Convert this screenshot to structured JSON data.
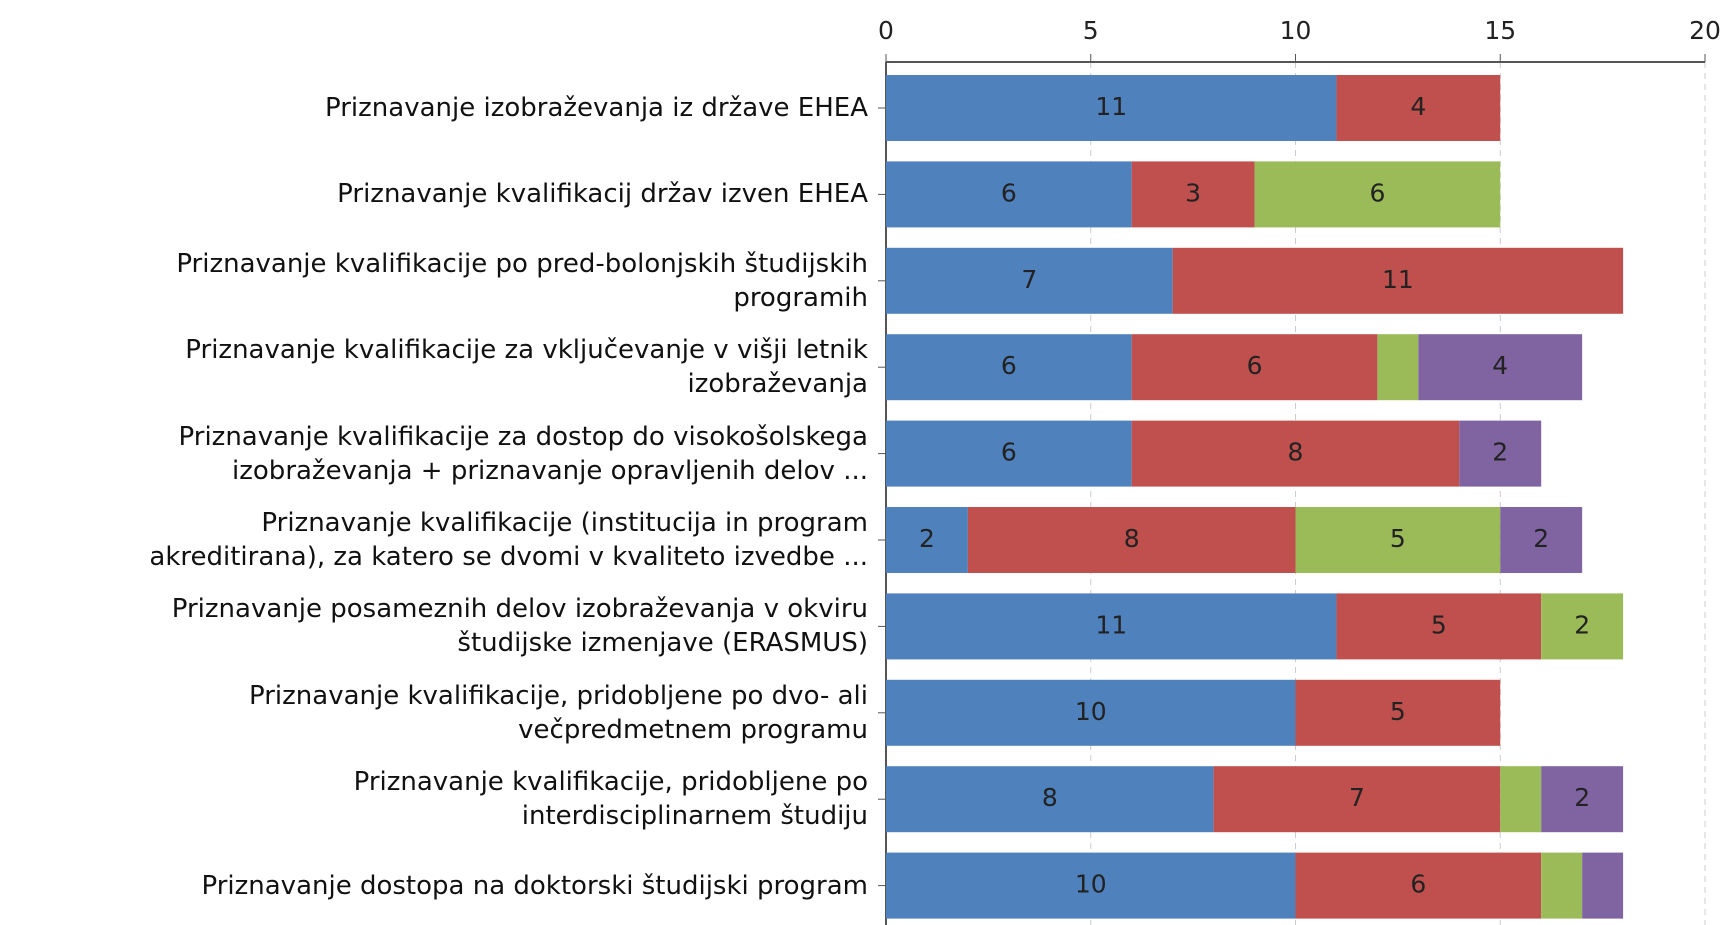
{
  "chart_data": {
    "type": "stacked-bar-horizontal",
    "categories": [
      "Priznavanje izobraževanja iz države EHEA",
      "Priznavanje kvalifikacij držav izven EHEA",
      "Priznavanje kvalifikacije po pred-bolonjskih študijskih\nprogramih",
      "Priznavanje kvalifikacije za vključevanje v višji letnik\nizobraževanja",
      "Priznavanje kvalifikacije za dostop do visokošolskega\nizobraževanja + priznavanje opravljenih delov ...",
      "Priznavanje kvalifikacije (institucija in program\nakreditirana), za katero se dvomi v kvaliteto izvedbe ...",
      "Priznavanje posameznih delov izobraževanja v okviru\nštudijske izmenjave (ERASMUS)",
      "Priznavanje kvalifikacije, pridobljene po dvo- ali\nvečpredmetnem programu",
      "Priznavanje kvalifikacije, pridobljene po\ninterdisciplinarnem študiju",
      "Priznavanje dostopa na doktorski študijski program"
    ],
    "series": [
      {
        "color": "#4f81bd",
        "values": [
          11,
          6,
          7,
          6,
          6,
          2,
          11,
          10,
          8,
          10
        ]
      },
      {
        "color": "#c0504d",
        "values": [
          4,
          3,
          11,
          6,
          8,
          8,
          5,
          5,
          7,
          6
        ]
      },
      {
        "color": "#9bbb59",
        "values": [
          null,
          6,
          null,
          1,
          null,
          5,
          2,
          null,
          1,
          1
        ]
      },
      {
        "color": "#8064a2",
        "values": [
          null,
          null,
          null,
          4,
          2,
          2,
          null,
          null,
          2,
          1
        ]
      }
    ],
    "xlim": [
      0,
      20
    ],
    "xticks": [
      0,
      5,
      10,
      15,
      20
    ],
    "grid": true
  }
}
